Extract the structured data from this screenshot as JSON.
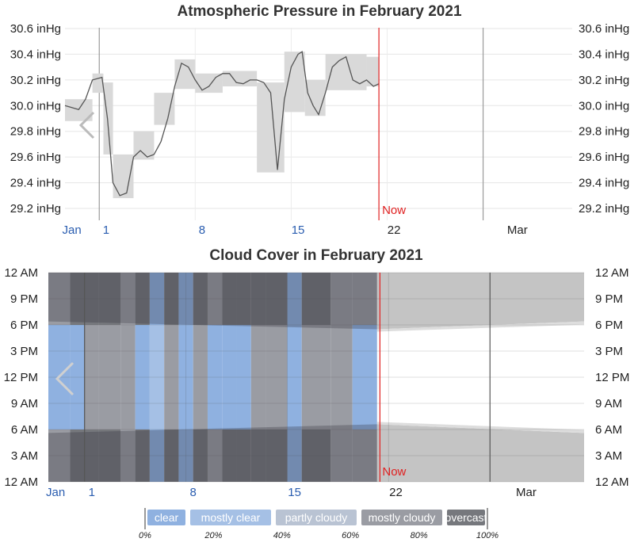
{
  "chart_data": [
    {
      "type": "line",
      "title": "Atmospheric Pressure in February 2021",
      "y_tick_labels": [
        "30.6 inHg",
        "30.4 inHg",
        "30.2 inHg",
        "30.0 inHg",
        "29.8 inHg",
        "29.6 inHg",
        "29.4 inHg",
        "29.2 inHg"
      ],
      "y_tick_values": [
        30.6,
        30.4,
        30.2,
        30.0,
        29.8,
        29.6,
        29.4,
        29.2
      ],
      "ylim": [
        29.1,
        30.65
      ],
      "x_range_days": [
        -2.5,
        34.5
      ],
      "x_ticks": [
        {
          "label": "Jan",
          "day": -2.0,
          "style": "blue"
        },
        {
          "label": "1",
          "day": 0.5,
          "style": "blue"
        },
        {
          "label": "8",
          "day": 7.5,
          "style": "blue"
        },
        {
          "label": "15",
          "day": 14.5,
          "style": "blue"
        },
        {
          "label": "22",
          "day": 21.5,
          "style": "dark"
        },
        {
          "label": "Mar",
          "day": 30.5,
          "style": "dark"
        }
      ],
      "month_lines_day": [
        0,
        28
      ],
      "now_day": 20.4,
      "now_label": "Now",
      "series": [
        {
          "days": [
            -2.5,
            -1.5,
            -1.0,
            -0.5,
            0.2,
            0.6,
            1.0,
            1.5,
            2.0,
            2.5,
            3.0,
            3.5,
            4.0,
            4.5,
            5.0,
            5.5,
            6.0,
            6.5,
            7.0,
            7.5,
            8.0,
            8.5,
            9.0,
            9.5,
            10.0,
            10.5,
            11.0,
            11.5,
            12.0,
            12.5,
            13.0,
            13.5,
            14.0,
            14.5,
            14.8,
            15.2,
            15.6,
            16.0,
            16.5,
            17.0,
            17.5,
            18.0,
            18.5,
            19.0,
            19.5,
            20.0,
            20.4
          ],
          "pressure": [
            30.0,
            29.97,
            30.05,
            30.2,
            30.22,
            29.9,
            29.4,
            29.3,
            29.32,
            29.6,
            29.65,
            29.6,
            29.62,
            29.72,
            29.9,
            30.15,
            30.33,
            30.3,
            30.2,
            30.12,
            30.15,
            30.22,
            30.25,
            30.25,
            30.18,
            30.17,
            30.2,
            30.2,
            30.18,
            30.1,
            29.5,
            30.05,
            30.3,
            30.4,
            30.42,
            30.1,
            30.0,
            29.93,
            30.1,
            30.3,
            30.35,
            30.38,
            30.2,
            30.17,
            30.2,
            30.15,
            30.17
          ]
        }
      ],
      "range_bands": [
        {
          "day0": -2.5,
          "day1": -0.5,
          "low": 29.88,
          "high": 30.05
        },
        {
          "day0": -0.5,
          "day1": 0.3,
          "low": 30.1,
          "high": 30.25
        },
        {
          "day0": 0.3,
          "day1": 1.0,
          "low": 29.62,
          "high": 30.18
        },
        {
          "day0": 1.0,
          "day1": 2.5,
          "low": 29.28,
          "high": 29.62
        },
        {
          "day0": 2.5,
          "day1": 4.0,
          "low": 29.58,
          "high": 29.8
        },
        {
          "day0": 4.0,
          "day1": 5.5,
          "low": 29.85,
          "high": 30.1
        },
        {
          "day0": 5.5,
          "day1": 7.0,
          "low": 30.13,
          "high": 30.36
        },
        {
          "day0": 7.0,
          "day1": 9.0,
          "low": 30.1,
          "high": 30.25
        },
        {
          "day0": 9.0,
          "day1": 11.5,
          "low": 30.15,
          "high": 30.27
        },
        {
          "day0": 11.5,
          "day1": 13.5,
          "low": 29.48,
          "high": 30.18
        },
        {
          "day0": 13.5,
          "day1": 15.0,
          "low": 29.95,
          "high": 30.42
        },
        {
          "day0": 15.0,
          "day1": 16.5,
          "low": 29.92,
          "high": 30.2
        },
        {
          "day0": 16.5,
          "day1": 19.5,
          "low": 30.12,
          "high": 30.4
        },
        {
          "day0": 19.5,
          "day1": 20.4,
          "low": 30.15,
          "high": 30.38
        }
      ]
    },
    {
      "type": "heatmap",
      "title": "Cloud Cover in February 2021",
      "y_tick_labels": [
        "12 AM",
        "9 PM",
        "6 PM",
        "3 PM",
        "12 PM",
        "9 AM",
        "6 AM",
        "3 AM",
        "12 AM"
      ],
      "y_tick_hours": [
        24,
        21,
        18,
        15,
        12,
        9,
        6,
        3,
        0
      ],
      "x_range_days": [
        -2.5,
        34.5
      ],
      "x_ticks": [
        {
          "label": "Jan",
          "day": -2.0,
          "style": "blue"
        },
        {
          "label": "1",
          "day": 0.5,
          "style": "blue"
        },
        {
          "label": "8",
          "day": 7.5,
          "style": "blue"
        },
        {
          "label": "15",
          "day": 14.5,
          "style": "blue"
        },
        {
          "label": "22",
          "day": 21.5,
          "style": "dark"
        },
        {
          "label": "Mar",
          "day": 30.5,
          "style": "dark"
        }
      ],
      "month_lines_day": [
        0,
        28
      ],
      "now_day": 20.4,
      "now_label": "Now",
      "data_end_day": 20.2,
      "night_evening_hour": [
        17.5,
        18.4
      ],
      "night_morning_hour": [
        6.6,
        5.6
      ],
      "category_colors": [
        "#8fb1e0",
        "#a5c0e5",
        "#b9c3d3",
        "#9a9ca3",
        "#76787d"
      ],
      "columns": [
        {
          "day0": -2.5,
          "day1": -1.0,
          "day_cat": 0,
          "night_cat": 3
        },
        {
          "day0": -1.0,
          "day1": 0.0,
          "day_cat": 0,
          "night_cat": 4
        },
        {
          "day0": 0.0,
          "day1": 1.0,
          "day_cat": 3,
          "night_cat": 4
        },
        {
          "day0": 1.0,
          "day1": 2.5,
          "day_cat": 3,
          "night_cat": 4
        },
        {
          "day0": 2.5,
          "day1": 3.5,
          "day_cat": 3,
          "night_cat": 3
        },
        {
          "day0": 3.5,
          "day1": 4.5,
          "day_cat": 0,
          "night_cat": 4
        },
        {
          "day0": 4.5,
          "day1": 5.5,
          "day_cat": 1,
          "night_cat": 0
        },
        {
          "day0": 5.5,
          "day1": 6.5,
          "day_cat": 3,
          "night_cat": 4
        },
        {
          "day0": 6.5,
          "day1": 7.5,
          "day_cat": 0,
          "night_cat": 0
        },
        {
          "day0": 7.5,
          "day1": 8.5,
          "day_cat": 3,
          "night_cat": 4
        },
        {
          "day0": 8.5,
          "day1": 9.5,
          "day_cat": 0,
          "night_cat": 3
        },
        {
          "day0": 9.5,
          "day1": 10.5,
          "day_cat": 0,
          "night_cat": 4
        },
        {
          "day0": 10.5,
          "day1": 11.5,
          "day_cat": 0,
          "night_cat": 4
        },
        {
          "day0": 11.5,
          "day1": 12.5,
          "day_cat": 3,
          "night_cat": 4
        },
        {
          "day0": 12.5,
          "day1": 14.0,
          "day_cat": 3,
          "night_cat": 4
        },
        {
          "day0": 14.0,
          "day1": 15.0,
          "day_cat": 0,
          "night_cat": 0
        },
        {
          "day0": 15.0,
          "day1": 17.0,
          "day_cat": 3,
          "night_cat": 4
        },
        {
          "day0": 17.0,
          "day1": 18.5,
          "day_cat": 3,
          "night_cat": 3
        },
        {
          "day0": 18.5,
          "day1": 20.2,
          "day_cat": 0,
          "night_cat": 3
        }
      ]
    }
  ],
  "legend": {
    "items": [
      {
        "label": "clear",
        "color": "#8fb1e0"
      },
      {
        "label": "mostly clear",
        "color": "#a5c0e5"
      },
      {
        "label": "partly cloudy",
        "color": "#b9c3d3"
      },
      {
        "label": "mostly cloudy",
        "color": "#9a9ca3"
      },
      {
        "label": "overcast",
        "color": "#76787d"
      }
    ],
    "percent_labels": [
      "0%",
      "20%",
      "40%",
      "60%",
      "80%",
      "100%"
    ]
  }
}
